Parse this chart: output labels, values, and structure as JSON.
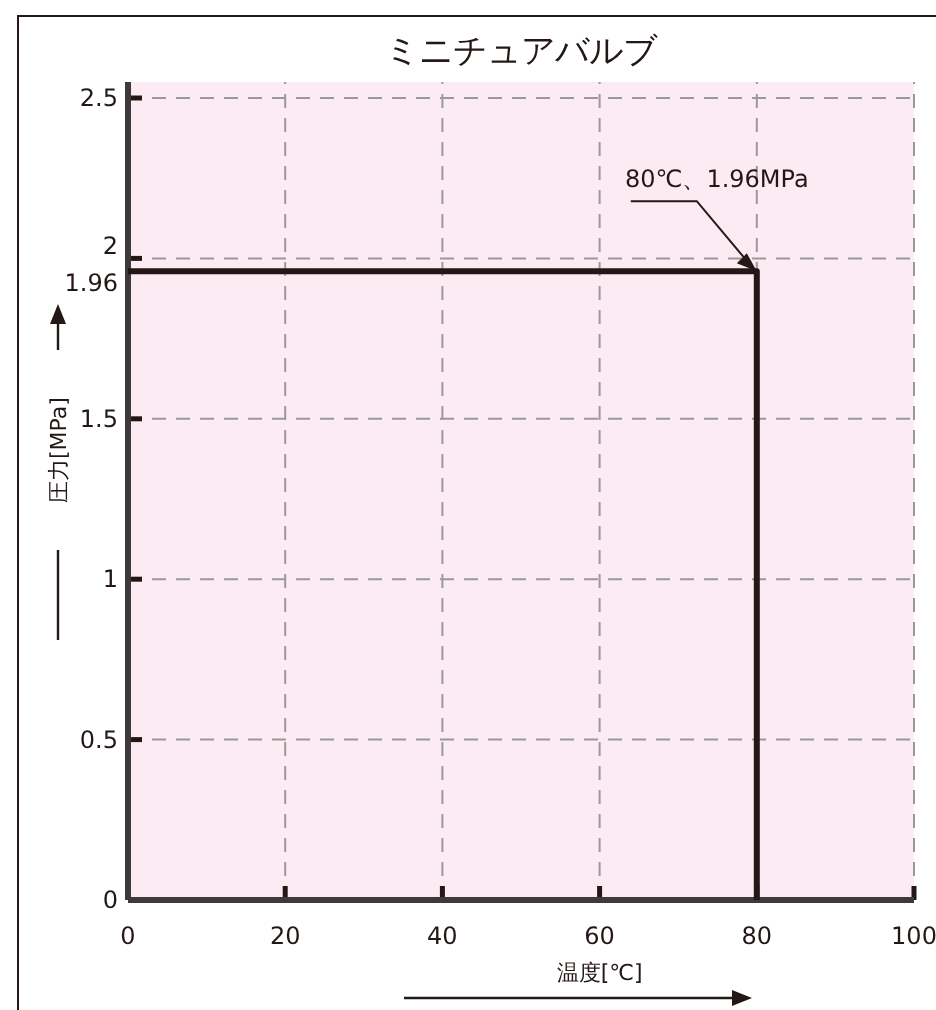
{
  "chart_data": {
    "type": "step",
    "title": "ミニチュアバルブ",
    "xlabel": "温度[℃]",
    "ylabel": "圧力[MPa]",
    "xlim": [
      0,
      100
    ],
    "ylim": [
      0,
      2.55
    ],
    "xticks": [
      0,
      20,
      40,
      60,
      80,
      100
    ],
    "yticks": [
      0,
      0.5,
      1,
      1.5,
      {
        "value": 1.96,
        "label": "1.96"
      },
      2,
      2.5
    ],
    "grid": true,
    "line_style": "solid",
    "bands": [
      {
        "axis": "y",
        "from": 0,
        "to": 2.55,
        "color": "#fdebf3"
      }
    ],
    "series": [
      {
        "color": "#231815",
        "x": [
          0,
          80
        ],
        "values": [
          1.96,
          0
        ]
      }
    ],
    "annotations": [
      {
        "text": "80℃、1.96MPa",
        "x": 80,
        "y": 1.96
      }
    ]
  }
}
